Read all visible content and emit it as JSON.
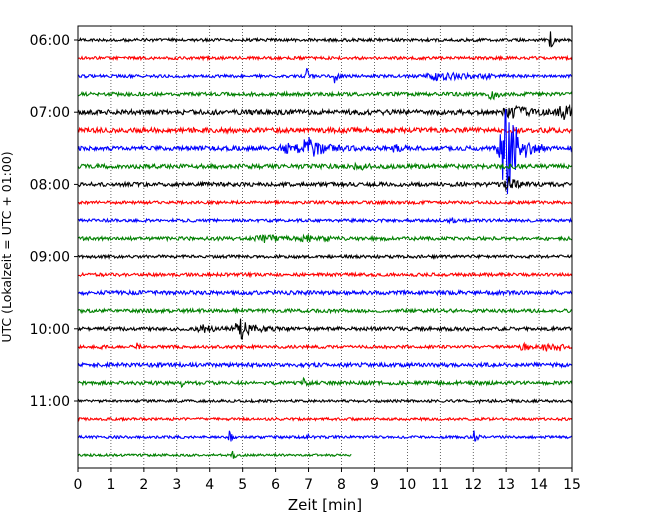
{
  "chart_data": {
    "type": "line",
    "subtype": "helicorder",
    "xlabel": "Zeit  [min]",
    "ylabel": "UTC (Lokalzeit = UTC + 01:00)",
    "xlim": [
      0,
      15
    ],
    "xticks": [
      "0",
      "1",
      "2",
      "3",
      "4",
      "5",
      "6",
      "7",
      "8",
      "9",
      "10",
      "11",
      "12",
      "13",
      "14",
      "15"
    ],
    "grid": "x-dotted",
    "row_interval_min": 15,
    "row_colors": [
      "#000000",
      "#ff0000",
      "#0000ff",
      "#008000"
    ],
    "yticks": [
      {
        "label": "06:00",
        "row": 0
      },
      {
        "label": "07:00",
        "row": 4
      },
      {
        "label": "08:00",
        "row": 8
      },
      {
        "label": "09:00",
        "row": 12
      },
      {
        "label": "10:00",
        "row": 16
      },
      {
        "label": "11:00",
        "row": 20
      }
    ],
    "rows": [
      {
        "time": "06:00",
        "noise": 1.5,
        "events": [
          {
            "x": 14.35,
            "amp": 8,
            "dur": 0.08
          }
        ]
      },
      {
        "time": "06:15",
        "noise": 1.5,
        "events": []
      },
      {
        "time": "06:30",
        "noise": 1.5,
        "events": [
          {
            "x": 6.95,
            "amp": 12,
            "dur": 0.05
          },
          {
            "x": 7.8,
            "amp": 9,
            "dur": 0.05
          },
          {
            "x": 11.0,
            "amp": 4,
            "dur": 0.6
          },
          {
            "x": 12.4,
            "amp": 3,
            "dur": 0.1
          }
        ]
      },
      {
        "time": "06:45",
        "noise": 1.8,
        "events": [
          {
            "x": 12.55,
            "amp": 6,
            "dur": 0.12
          }
        ]
      },
      {
        "time": "07:00",
        "noise": 2.5,
        "events": [
          {
            "x": 14.8,
            "amp": 6,
            "dur": 0.4
          },
          {
            "x": 13.2,
            "amp": 5,
            "dur": 0.4
          }
        ]
      },
      {
        "time": "07:15",
        "noise": 2.5,
        "events": []
      },
      {
        "time": "07:30",
        "noise": 2.2,
        "events": [
          {
            "x": 7.0,
            "amp": 9,
            "dur": 0.4
          },
          {
            "x": 6.3,
            "amp": 4,
            "dur": 0.3
          },
          {
            "x": 13.0,
            "amp": 50,
            "dur": 0.3
          },
          {
            "x": 9.6,
            "amp": 4,
            "dur": 0.15
          }
        ]
      },
      {
        "time": "07:45",
        "noise": 2.2,
        "events": [
          {
            "x": 8.5,
            "amp": 4,
            "dur": 0.15
          }
        ]
      },
      {
        "time": "08:00",
        "noise": 2.0,
        "events": [
          {
            "x": 13.05,
            "amp": 8,
            "dur": 0.2
          }
        ]
      },
      {
        "time": "08:15",
        "noise": 1.5,
        "events": []
      },
      {
        "time": "08:30",
        "noise": 1.5,
        "events": [
          {
            "x": 11.3,
            "amp": 3,
            "dur": 0.1
          }
        ]
      },
      {
        "time": "08:45",
        "noise": 1.8,
        "events": [
          {
            "x": 5.7,
            "amp": 3,
            "dur": 0.4
          },
          {
            "x": 7.0,
            "amp": 3,
            "dur": 0.3
          }
        ]
      },
      {
        "time": "09:00",
        "noise": 1.5,
        "events": []
      },
      {
        "time": "09:15",
        "noise": 1.6,
        "events": []
      },
      {
        "time": "09:30",
        "noise": 2.0,
        "events": []
      },
      {
        "time": "09:45",
        "noise": 1.8,
        "events": []
      },
      {
        "time": "10:00",
        "noise": 1.8,
        "events": [
          {
            "x": 4.95,
            "amp": 10,
            "dur": 0.3
          },
          {
            "x": 3.8,
            "amp": 3,
            "dur": 0.3
          }
        ]
      },
      {
        "time": "10:15",
        "noise": 1.5,
        "events": [
          {
            "x": 0.7,
            "amp": 4,
            "dur": 0.05
          },
          {
            "x": 1.8,
            "amp": 4,
            "dur": 0.05
          },
          {
            "x": 13.5,
            "amp": 5,
            "dur": 0.15
          },
          {
            "x": 14.2,
            "amp": 5,
            "dur": 0.15
          },
          {
            "x": 14.6,
            "amp": 4,
            "dur": 0.1
          }
        ]
      },
      {
        "time": "10:30",
        "noise": 2.0,
        "events": []
      },
      {
        "time": "10:45",
        "noise": 1.8,
        "events": [
          {
            "x": 3.15,
            "amp": 4,
            "dur": 0.05
          },
          {
            "x": 6.85,
            "amp": 4,
            "dur": 0.05
          }
        ]
      },
      {
        "time": "11:00",
        "noise": 1.3,
        "events": [
          {
            "x": 12.2,
            "amp": 3,
            "dur": 0.05
          }
        ]
      },
      {
        "time": "11:15",
        "noise": 1.3,
        "events": []
      },
      {
        "time": "11:30",
        "noise": 1.3,
        "events": [
          {
            "x": 4.6,
            "amp": 7,
            "dur": 0.05
          },
          {
            "x": 7.0,
            "amp": 3,
            "dur": 0.05
          },
          {
            "x": 12.05,
            "amp": 11,
            "dur": 0.05
          }
        ]
      },
      {
        "time": "11:45",
        "noise": 1.2,
        "end_x": 8.3,
        "events": [
          {
            "x": 4.7,
            "amp": 7,
            "dur": 0.05
          }
        ]
      }
    ]
  }
}
